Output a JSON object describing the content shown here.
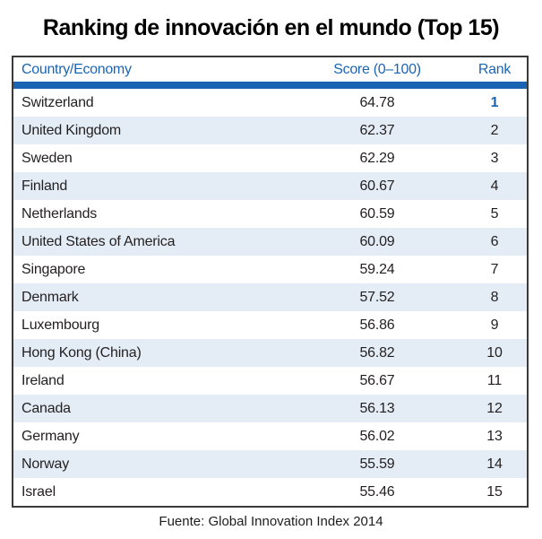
{
  "title": "Ranking de innovación en el mundo (Top 15)",
  "footer": "Fuente: Global Innovation Index 2014",
  "colors": {
    "accent_blue": "#1B64B4",
    "row_alt_blue": "#E4EDF6",
    "table_border": "#3A3A3A",
    "text": "#231F20"
  },
  "chart_data": {
    "type": "table",
    "title": "Ranking de innovación en el mundo (Top 15)",
    "columns": [
      "Country/Economy",
      "Score (0–100)",
      "Rank"
    ],
    "rows": [
      {
        "country": "Switzerland",
        "score": "64.78",
        "rank": "1"
      },
      {
        "country": "United Kingdom",
        "score": "62.37",
        "rank": "2"
      },
      {
        "country": "Sweden",
        "score": "62.29",
        "rank": "3"
      },
      {
        "country": "Finland",
        "score": "60.67",
        "rank": "4"
      },
      {
        "country": "Netherlands",
        "score": "60.59",
        "rank": "5"
      },
      {
        "country": "United States of America",
        "score": "60.09",
        "rank": "6"
      },
      {
        "country": "Singapore",
        "score": "59.24",
        "rank": "7"
      },
      {
        "country": "Denmark",
        "score": "57.52",
        "rank": "8"
      },
      {
        "country": "Luxembourg",
        "score": "56.86",
        "rank": "9"
      },
      {
        "country": "Hong Kong (China)",
        "score": "56.82",
        "rank": "10"
      },
      {
        "country": "Ireland",
        "score": "56.67",
        "rank": "11"
      },
      {
        "country": "Canada",
        "score": "56.13",
        "rank": "12"
      },
      {
        "country": "Germany",
        "score": "56.02",
        "rank": "13"
      },
      {
        "country": "Norway",
        "score": "55.59",
        "rank": "14"
      },
      {
        "country": "Israel",
        "score": "55.46",
        "rank": "15"
      }
    ],
    "source_caption": "Fuente: Global Innovation Index 2014",
    "highlighted_rank": "1"
  }
}
